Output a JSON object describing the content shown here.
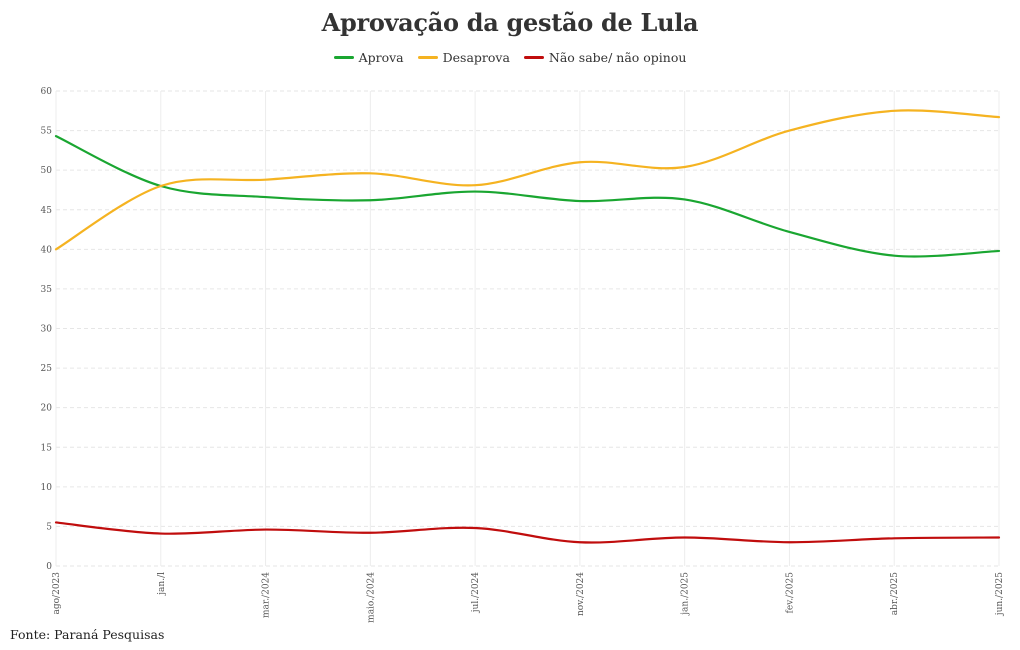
{
  "chart_data": {
    "type": "line",
    "title": "Aprovação da gestão de Lula",
    "xlabel": "",
    "ylabel": "",
    "categories": [
      "ago/2023",
      "jan./l",
      "mar./2024",
      "maio./2024",
      "jul./2024",
      "nov./2024",
      "jan./2025",
      "fev./2025",
      "abr./2025",
      "jun./2025"
    ],
    "ylim": [
      0,
      60
    ],
    "yticks": [
      0,
      5,
      10,
      15,
      20,
      25,
      30,
      35,
      40,
      45,
      50,
      55,
      60
    ],
    "grid": true,
    "legend_position": "top-center",
    "series": [
      {
        "name": "Aprova",
        "color": "#1aa631",
        "values": [
          54.3,
          48.0,
          46.6,
          46.2,
          47.3,
          46.1,
          46.3,
          42.2,
          39.2,
          39.8
        ]
      },
      {
        "name": "Desaprova",
        "color": "#f5b321",
        "values": [
          40.0,
          48.0,
          48.8,
          49.6,
          48.1,
          51.0,
          50.4,
          55.0,
          57.5,
          56.7
        ]
      },
      {
        "name": "Não sabe/ não opinou",
        "color": "#c00d0d",
        "values": [
          5.5,
          4.1,
          4.6,
          4.2,
          4.8,
          3.0,
          3.6,
          3.0,
          3.5,
          3.6
        ]
      }
    ],
    "source": "Fonte: Paraná Pesquisas"
  }
}
